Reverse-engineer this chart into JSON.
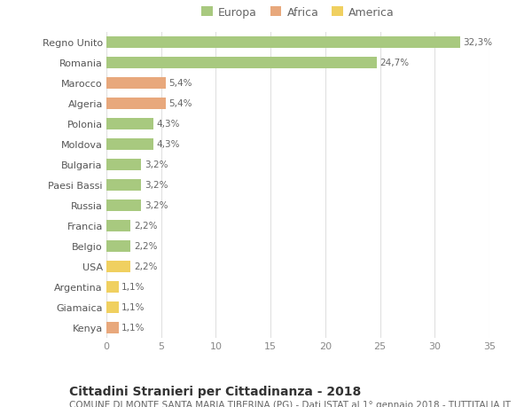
{
  "countries": [
    "Regno Unito",
    "Romania",
    "Marocco",
    "Algeria",
    "Polonia",
    "Moldova",
    "Bulgaria",
    "Paesi Bassi",
    "Russia",
    "Francia",
    "Belgio",
    "USA",
    "Argentina",
    "Giamaica",
    "Kenya"
  ],
  "values": [
    32.3,
    24.7,
    5.4,
    5.4,
    4.3,
    4.3,
    3.2,
    3.2,
    3.2,
    2.2,
    2.2,
    2.2,
    1.1,
    1.1,
    1.1
  ],
  "labels": [
    "32,3%",
    "24,7%",
    "5,4%",
    "5,4%",
    "4,3%",
    "4,3%",
    "3,2%",
    "3,2%",
    "3,2%",
    "2,2%",
    "2,2%",
    "2,2%",
    "1,1%",
    "1,1%",
    "1,1%"
  ],
  "colors": [
    "#a8c97f",
    "#a8c97f",
    "#e8a87c",
    "#e8a87c",
    "#a8c97f",
    "#a8c97f",
    "#a8c97f",
    "#a8c97f",
    "#a8c97f",
    "#a8c97f",
    "#a8c97f",
    "#f0d060",
    "#f0d060",
    "#f0d060",
    "#e8a87c"
  ],
  "legend_labels": [
    "Europa",
    "Africa",
    "America"
  ],
  "legend_colors": [
    "#a8c97f",
    "#e8a87c",
    "#f0d060"
  ],
  "xlim": [
    0,
    35
  ],
  "xticks": [
    0,
    5,
    10,
    15,
    20,
    25,
    30,
    35
  ],
  "title": "Cittadini Stranieri per Cittadinanza - 2018",
  "subtitle": "COMUNE DI MONTE SANTA MARIA TIBERINA (PG) - Dati ISTAT al 1° gennaio 2018 - TUTTITALIA.IT",
  "bg_color": "#ffffff",
  "grid_color": "#e0e0e0",
  "bar_height": 0.55,
  "title_fontsize": 10,
  "subtitle_fontsize": 7.5,
  "label_fontsize": 7.5,
  "tick_fontsize": 8,
  "legend_fontsize": 9
}
